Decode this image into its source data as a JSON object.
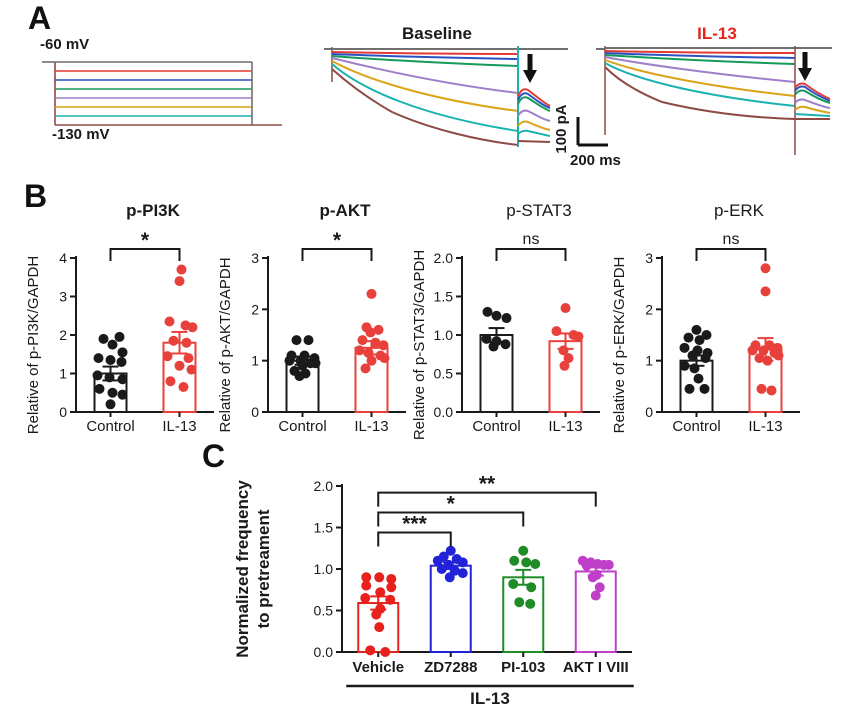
{
  "figure": {
    "panel_a": {
      "label": "A",
      "protocol": {
        "top_label": "-60 mV",
        "bottom_label": "-130 mV"
      },
      "baseline_title": "Baseline",
      "il13_title": "IL-13",
      "scalebar": {
        "vertical": "100 pA",
        "horizontal": "200 ms"
      }
    },
    "panel_b": {
      "label": "B"
    },
    "panel_c": {
      "label": "C"
    }
  },
  "colors": {
    "page_bg": "#ffffff",
    "text": "#1a1a1a",
    "il13_title_red": "#e8211d",
    "control_black": "#1a1a1a",
    "il13_points_red": "#e8413c",
    "vehicle_red": "#e8211d",
    "zd7288_blue": "#2222d8",
    "pi103_green": "#1f8c28",
    "akt_purple": "#bf3fc9",
    "traces": [
      "#6f6f6f",
      "#e23b33",
      "#2a52c4",
      "#159a5a",
      "#9f7fca",
      "#d9a417",
      "#19b2b0",
      "#8e4a45"
    ]
  },
  "chart_data": [
    {
      "id": "p-pi3k",
      "type": "bar",
      "title": "p-PI3K",
      "title_bold": true,
      "ylabel": "Relative of p-PI3K/GAPDH",
      "categories": [
        "Control",
        "IL-13"
      ],
      "ylim": [
        0,
        4
      ],
      "yticks": [
        "0",
        "1",
        "2",
        "3",
        "4"
      ],
      "significance": "*",
      "colors": [
        "#1a1a1a",
        "#e8413c"
      ],
      "means": [
        1.0,
        1.8
      ],
      "sems": [
        0.18,
        0.28
      ],
      "points": [
        [
          1.95,
          1.9,
          1.75,
          1.55,
          1.4,
          1.35,
          1.3,
          0.95,
          0.9,
          0.85,
          0.6,
          0.5,
          0.45,
          0.2
        ],
        [
          3.7,
          3.4,
          2.35,
          2.25,
          2.2,
          1.85,
          1.8,
          1.45,
          1.4,
          1.2,
          1.1,
          0.8,
          0.65
        ]
      ],
      "jitter": [
        [
          9,
          -7,
          2,
          12,
          -12,
          0,
          11,
          -13,
          -1,
          12,
          -11,
          2,
          12,
          0
        ],
        [
          2,
          0,
          -10,
          6,
          13,
          -6,
          7,
          -12,
          9,
          0,
          12,
          -9,
          4
        ]
      ]
    },
    {
      "id": "p-akt",
      "type": "bar",
      "title": "p-AKT",
      "title_bold": true,
      "ylabel": "Relative of p-AKT/GAPDH",
      "categories": [
        "Control",
        "IL-13"
      ],
      "ylim": [
        0,
        3
      ],
      "yticks": [
        "0",
        "1",
        "2",
        "3"
      ],
      "significance": "*",
      "colors": [
        "#1a1a1a",
        "#e8413c"
      ],
      "means": [
        1.0,
        1.25
      ],
      "sems": [
        0.08,
        0.13
      ],
      "points": [
        [
          1.4,
          1.4,
          1.1,
          1.1,
          1.05,
          1.0,
          1.0,
          0.95,
          0.95,
          0.9,
          0.8,
          0.75,
          0.7
        ],
        [
          2.3,
          1.65,
          1.6,
          1.55,
          1.4,
          1.35,
          1.3,
          1.2,
          1.15,
          1.1,
          1.05,
          1.0,
          0.85
        ]
      ],
      "jitter": [
        [
          -6,
          6,
          -11,
          2,
          12,
          -13,
          -2,
          8,
          13,
          0,
          -8,
          3,
          -3
        ],
        [
          0,
          -5,
          7,
          -1,
          -9,
          4,
          12,
          -12,
          -3,
          9,
          13,
          0,
          -6
        ]
      ]
    },
    {
      "id": "p-stat3",
      "type": "bar",
      "title": "p-STAT3",
      "title_bold": false,
      "ylabel": "Relative of p-STAT3/GAPDH",
      "categories": [
        "Control",
        "IL-13"
      ],
      "ylim": [
        0,
        2
      ],
      "yticks": [
        "0.0",
        "0.5",
        "1.0",
        "1.5",
        "2.0"
      ],
      "significance": "ns",
      "colors": [
        "#1a1a1a",
        "#e8413c"
      ],
      "means": [
        1.0,
        0.92
      ],
      "sems": [
        0.09,
        0.1
      ],
      "points": [
        [
          1.3,
          1.25,
          1.22,
          0.95,
          0.92,
          0.88,
          0.85
        ],
        [
          1.35,
          1.05,
          1.0,
          0.98,
          0.8,
          0.7,
          0.6
        ]
      ],
      "jitter": [
        [
          -9,
          0,
          10,
          -10,
          0,
          9,
          -3
        ],
        [
          0,
          -9,
          8,
          13,
          -2,
          3,
          -1
        ]
      ]
    },
    {
      "id": "p-erk",
      "type": "bar",
      "title": "p-ERK",
      "title_bold": false,
      "ylabel": "Relative of p-ERK/GAPDH",
      "categories": [
        "Control",
        "IL-13"
      ],
      "ylim": [
        0,
        3
      ],
      "yticks": [
        "0",
        "1",
        "2",
        "3"
      ],
      "significance": "ns",
      "colors": [
        "#1a1a1a",
        "#e8413c"
      ],
      "means": [
        1.0,
        1.22
      ],
      "sems": [
        0.1,
        0.22
      ],
      "points": [
        [
          1.6,
          1.5,
          1.45,
          1.4,
          1.25,
          1.2,
          1.15,
          1.1,
          1.05,
          0.9,
          0.85,
          0.65,
          0.45,
          0.45
        ],
        [
          2.8,
          2.35,
          1.3,
          1.3,
          1.25,
          1.2,
          1.2,
          1.15,
          1.1,
          1.05,
          1.0,
          0.45,
          0.42
        ]
      ],
      "jitter": [
        [
          0,
          10,
          -8,
          3,
          -12,
          1,
          11,
          -4,
          9,
          -12,
          -2,
          2,
          -7,
          8
        ],
        [
          0,
          0,
          -10,
          4,
          12,
          -13,
          -2,
          9,
          13,
          -6,
          2,
          -4,
          6
        ]
      ]
    },
    {
      "id": "normalized-frequency",
      "type": "bar",
      "title": "",
      "title_bold": false,
      "ylabel_lines": [
        "Normalized frequency",
        "to pretreament"
      ],
      "categories": [
        "Vehicle",
        "ZD7288",
        "PI-103",
        "AKT I VIII"
      ],
      "group_label": "IL-13",
      "ylim": [
        0,
        2
      ],
      "yticks": [
        "0.0",
        "0.5",
        "1.0",
        "1.5",
        "2.0"
      ],
      "significance": [
        {
          "from": 0,
          "to": 1,
          "label": "***"
        },
        {
          "from": 0,
          "to": 2,
          "label": "*"
        },
        {
          "from": 0,
          "to": 3,
          "label": "**"
        }
      ],
      "colors": [
        "#e8211d",
        "#2222d8",
        "#1f8c28",
        "#bf3fc9"
      ],
      "means": [
        0.59,
        1.04,
        0.9,
        0.97
      ],
      "sems": [
        0.08,
        0.04,
        0.09,
        0.05
      ],
      "points": [
        [
          0.9,
          0.9,
          0.88,
          0.8,
          0.78,
          0.72,
          0.65,
          0.63,
          0.52,
          0.45,
          0.3,
          0.02,
          0.0
        ],
        [
          1.22,
          1.15,
          1.12,
          1.1,
          1.08,
          1.05,
          1.0,
          0.98,
          0.95,
          0.9
        ],
        [
          1.22,
          1.1,
          1.08,
          1.06,
          0.82,
          0.78,
          0.6,
          0.58
        ],
        [
          1.1,
          1.08,
          1.06,
          1.05,
          1.05,
          1.04,
          0.93,
          0.9,
          0.78,
          0.68
        ]
      ],
      "jitter": [
        [
          -12,
          1,
          13,
          -12,
          13,
          2,
          -13,
          12,
          2,
          -2,
          1,
          -8,
          7
        ],
        [
          0,
          -7,
          6,
          -13,
          12,
          -2,
          -9,
          4,
          12,
          -1
        ],
        [
          0,
          -9,
          3,
          12,
          -10,
          8,
          -4,
          7
        ],
        [
          -13,
          -5,
          2,
          8,
          13,
          -9,
          1,
          -3,
          4,
          0
        ]
      ]
    }
  ]
}
